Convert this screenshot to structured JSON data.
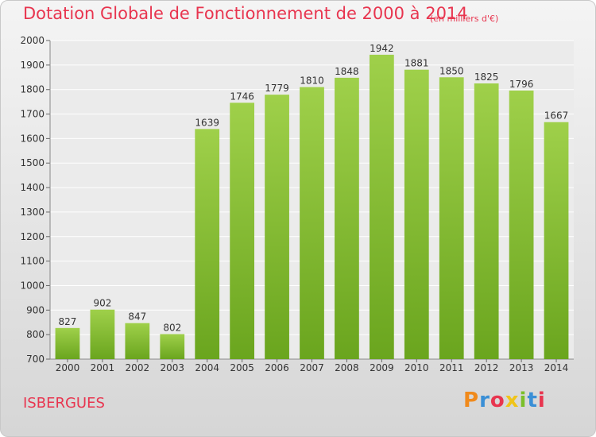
{
  "header": {
    "title": "Dotation Globale de Fonctionnement de 2000 à 2014",
    "unit": "(en milliers d'€)"
  },
  "footer": {
    "commune": "ISBERGUES",
    "logo": [
      "P",
      "r",
      "o",
      "x",
      "i",
      "t",
      "i"
    ]
  },
  "colors": {
    "accent": "#e8354f",
    "bar_top": "#9fd04a",
    "bar_bottom": "#6aa51e"
  },
  "chart_data": {
    "type": "bar",
    "title": "Dotation Globale de Fonctionnement de 2000 à 2014",
    "subtitle": "(en milliers d'€)",
    "xlabel": "",
    "ylabel": "",
    "categories": [
      "2000",
      "2001",
      "2002",
      "2003",
      "2004",
      "2005",
      "2006",
      "2007",
      "2008",
      "2009",
      "2010",
      "2011",
      "2012",
      "2013",
      "2014"
    ],
    "values": [
      827,
      902,
      847,
      802,
      1639,
      1746,
      1779,
      1810,
      1848,
      1942,
      1881,
      1850,
      1825,
      1796,
      1667
    ],
    "ylim": [
      700,
      2000
    ],
    "yticks": [
      700,
      800,
      900,
      1000,
      1100,
      1200,
      1300,
      1400,
      1500,
      1600,
      1700,
      1800,
      1900,
      2000
    ],
    "grid": true
  }
}
